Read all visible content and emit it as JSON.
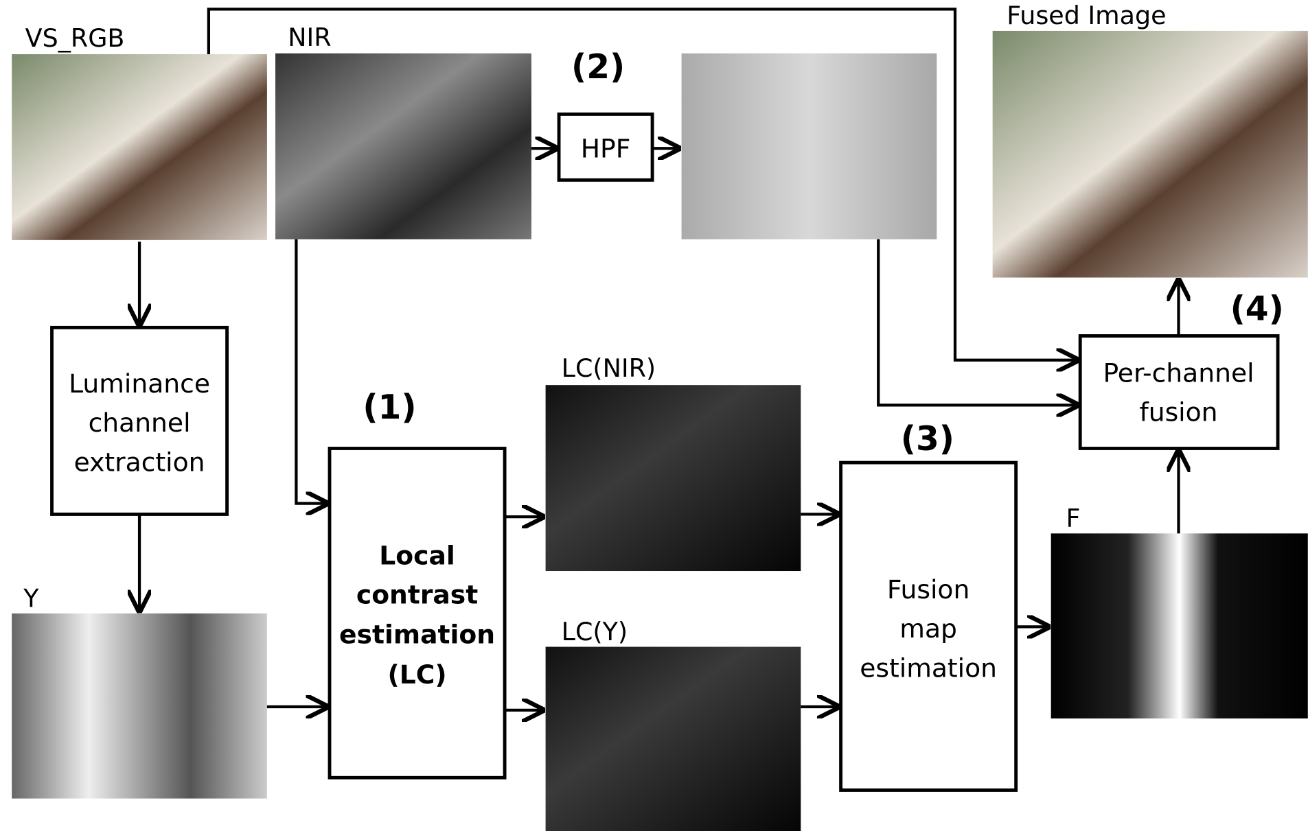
{
  "images": [
    {
      "label": "VS_RGB"
    },
    {
      "label": "NIR"
    },
    {
      "label": "Fused Image"
    },
    {
      "label": "LC(NIR)"
    },
    {
      "label": "LC(Y)"
    },
    {
      "label": "Y"
    },
    {
      "label": "F"
    }
  ],
  "blocks": [
    {
      "lines": [
        "HPF"
      ]
    },
    {
      "lines": [
        "Luminance",
        "channel",
        "extraction"
      ]
    },
    {
      "lines": [
        "Local",
        "contrast",
        "estimation",
        "(LC)"
      ]
    },
    {
      "lines": [
        "Fusion",
        "map",
        "estimation"
      ]
    },
    {
      "lines": [
        "Per-channel",
        "fusion"
      ]
    }
  ],
  "steps": [
    "(1)",
    "(2)",
    "(3)",
    "(4)"
  ]
}
